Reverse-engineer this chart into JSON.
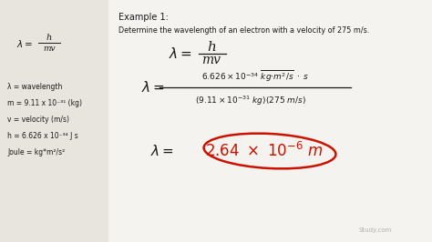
{
  "bg_color": "#e8e4de",
  "title": "Example 1:",
  "problem": "Determine the wavelength of an electron with a velocity of 275 m/s.",
  "legend_lines": [
    "λ = wavelength",
    "m = 9.11 x 10⁻³¹ (kg)",
    "v = velocity (m/s)",
    "h = 6.626 x 10⁻³⁴ J s",
    "Joule = kg*m²/s²"
  ],
  "watermark": "Study.com",
  "black": "#1a1a1a",
  "red": "#cc1100",
  "gray": "#999999",
  "white": "#f5f3ef"
}
